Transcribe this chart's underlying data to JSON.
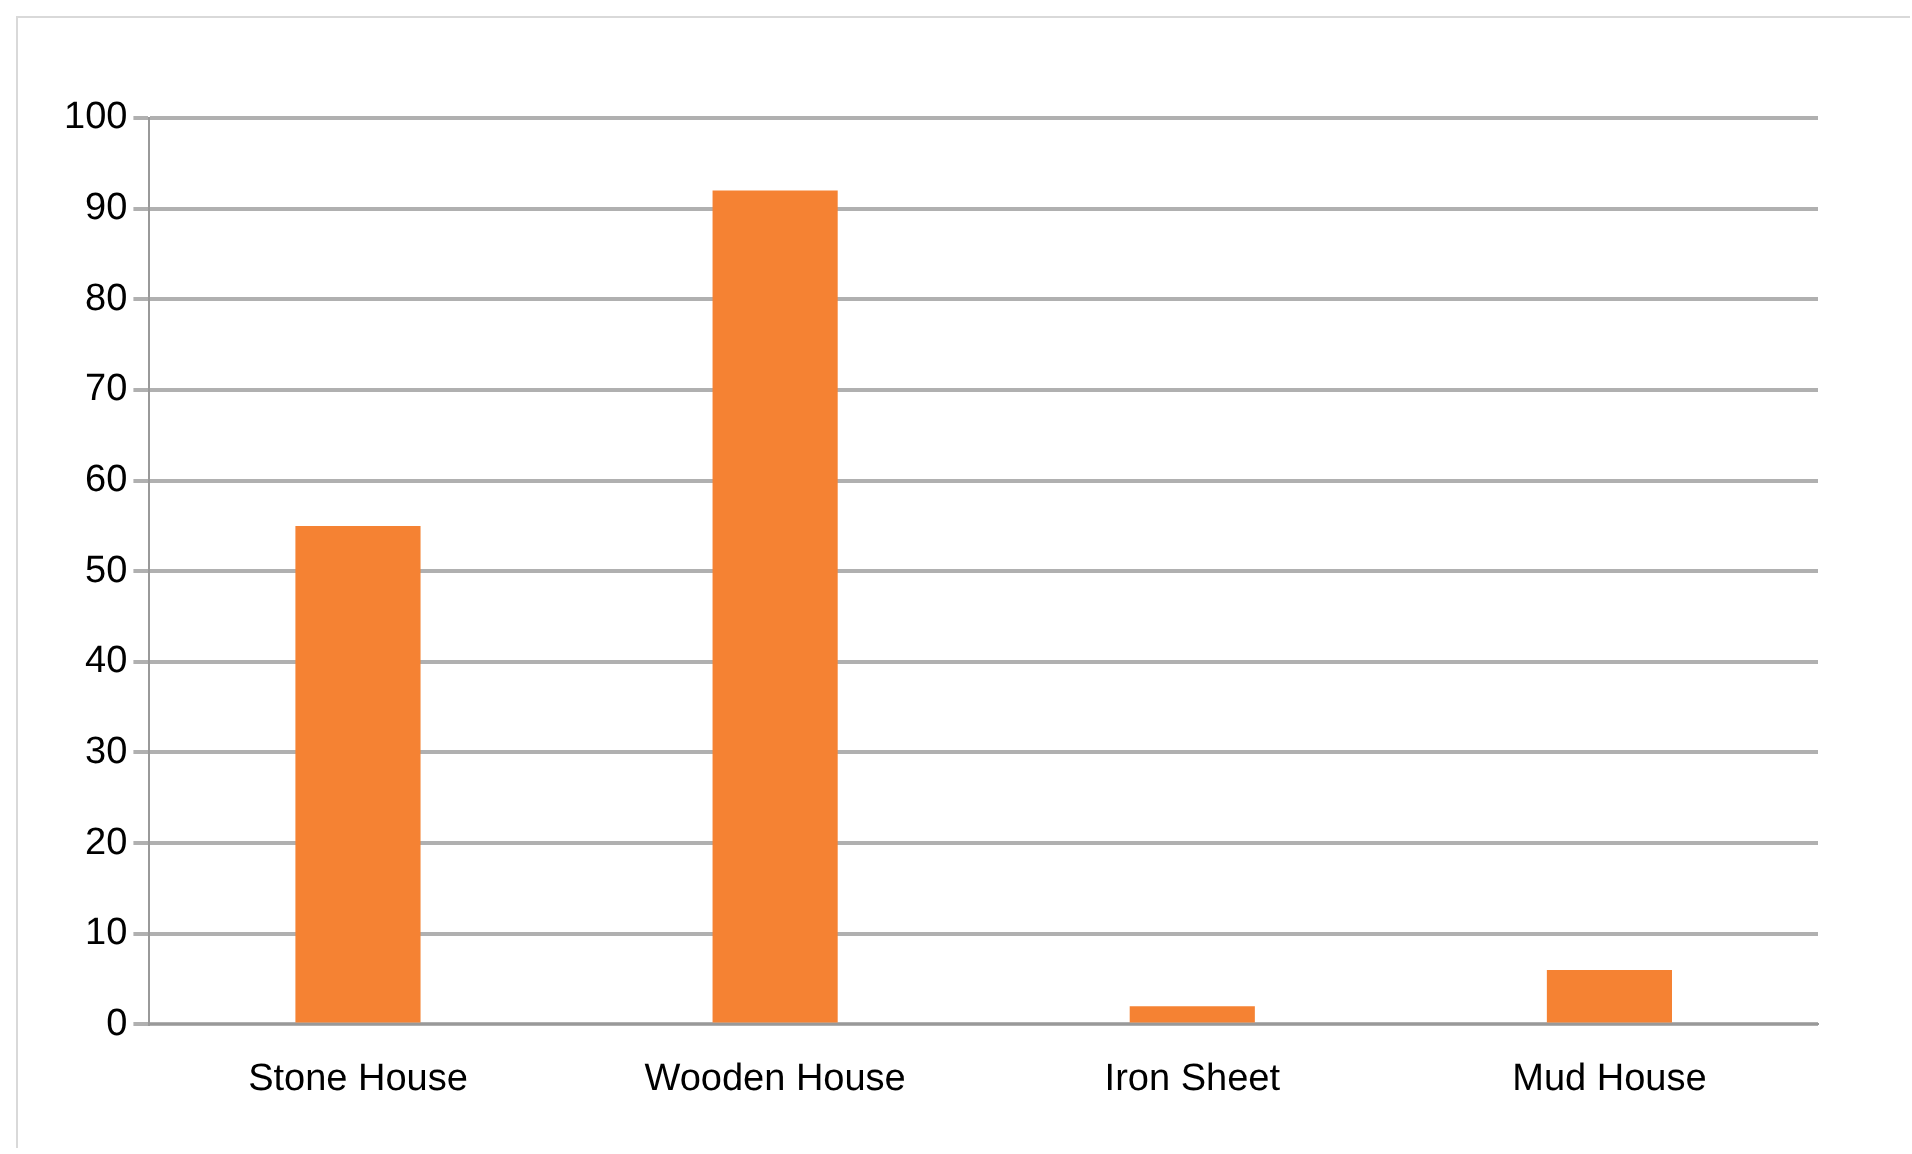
{
  "chart_data": {
    "type": "bar",
    "categories": [
      "Stone House",
      "Wooden House",
      "Iron Sheet",
      "Mud House"
    ],
    "values": [
      55,
      92,
      2,
      6
    ],
    "color": "#f58233",
    "ylim": [
      0,
      100
    ],
    "yticks": [
      0,
      10,
      20,
      30,
      40,
      50,
      60,
      70,
      80,
      90,
      100
    ],
    "grid": "y"
  }
}
